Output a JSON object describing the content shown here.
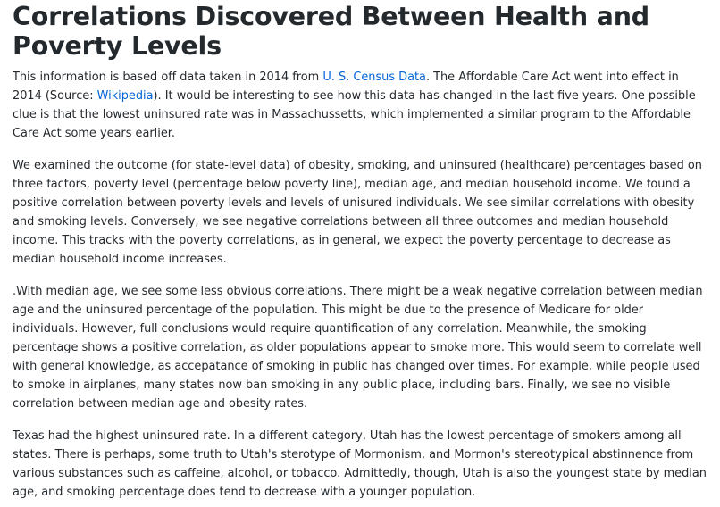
{
  "title": "Correlations Discovered Between Health and Poverty Levels",
  "p1": {
    "t1": "This information is based off data taken in 2014 from ",
    "link1": "U. S. Census Data",
    "t2": ". The Affordable Care Act went into effect in 2014 (Source: ",
    "link2": "Wikipedia",
    "t3": "). It would be interesting to see how this data has changed in the last five years. One possible clue is that the lowest uninsured rate was in Massachussetts, which implemented a similar program to the Affordable Care Act some years earlier."
  },
  "p2": "We examined the outcome (for state-level data) of obesity, smoking, and uninsured (healthcare) percentages based on three factors, poverty level (percentage below poverty line), median age, and median household income. We found a positive correlation between poverty levels and levels of unisured individuals. We see similar correlations with obesity and smoking levels. Conversely, we see negative correlations between all three outcomes and median household income. This tracks with the poverty correlations, as in general, we expect the poverty percentage to decrease as median household income increases.",
  "p3": ".With median age, we see some less obvious correlations. There might be a weak negative correlation between median age and the uninsured percentage of the population. This might be due to the presence of Medicare for older individuals. However, full conclusions would require quantification of any correlation. Meanwhile, the smoking percentage shows a positive correlation, as older populations appear to smoke more. This would seem to correlate well with general knowledge, as accepatance of smoking in public has changed over times. For example, while people used to smoke in airplanes, many states now ban smoking in any public place, including bars. Finally, we see no visible correlation between median age and obesity rates.",
  "p4": "Texas had the highest uninsured rate. In a different category, Utah has the lowest percentage of smokers among all states. There is perhaps, some truth to Utah's sterotype of Mormonism, and Mormon's stereotypical abstinnence from various substances such as caffeine, alcohol, or tobacco. Admittedly, though, Utah is also the youngest state by median age, and smoking percentage does tend to decrease with a younger population.",
  "colors": {
    "text": "#24292e",
    "link": "#0366d6",
    "background": "#ffffff"
  }
}
